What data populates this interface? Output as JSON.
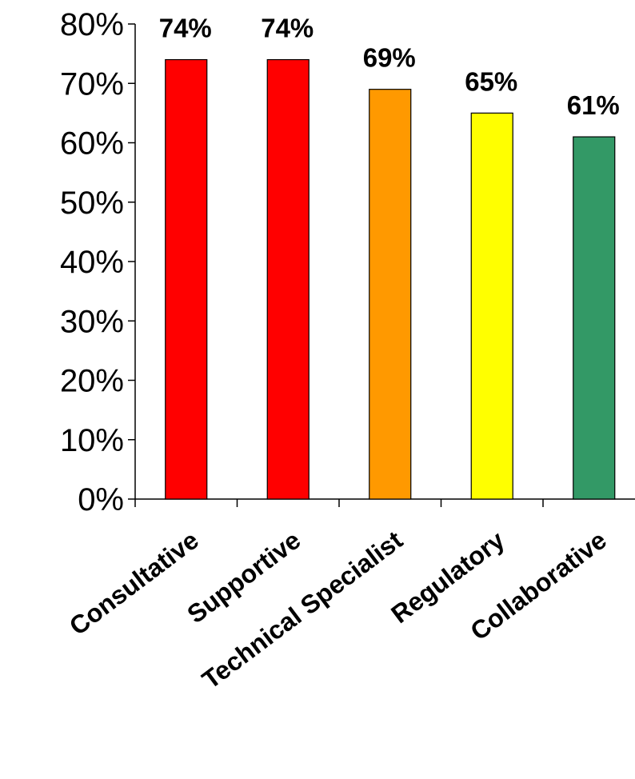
{
  "chart_data": {
    "type": "bar",
    "title": "",
    "xlabel": "",
    "ylabel": "",
    "categories": [
      "Consultative",
      "Supportive",
      "Technical Specialist",
      "Regulatory",
      "Collaborative"
    ],
    "values": [
      74,
      74,
      69,
      65,
      61
    ],
    "data_labels": [
      "74%",
      "74%",
      "69%",
      "65%",
      "61%"
    ],
    "colors": [
      "#ff0000",
      "#ff0000",
      "#ff9900",
      "#ffff00",
      "#339966"
    ],
    "ylim": [
      0,
      80
    ],
    "yticks": [
      0,
      10,
      20,
      30,
      40,
      50,
      60,
      70,
      80
    ],
    "ytick_labels": [
      "0%",
      "10%",
      "20%",
      "30%",
      "40%",
      "50%",
      "60%",
      "70%",
      "80%"
    ],
    "grid": false,
    "legend": "none"
  }
}
